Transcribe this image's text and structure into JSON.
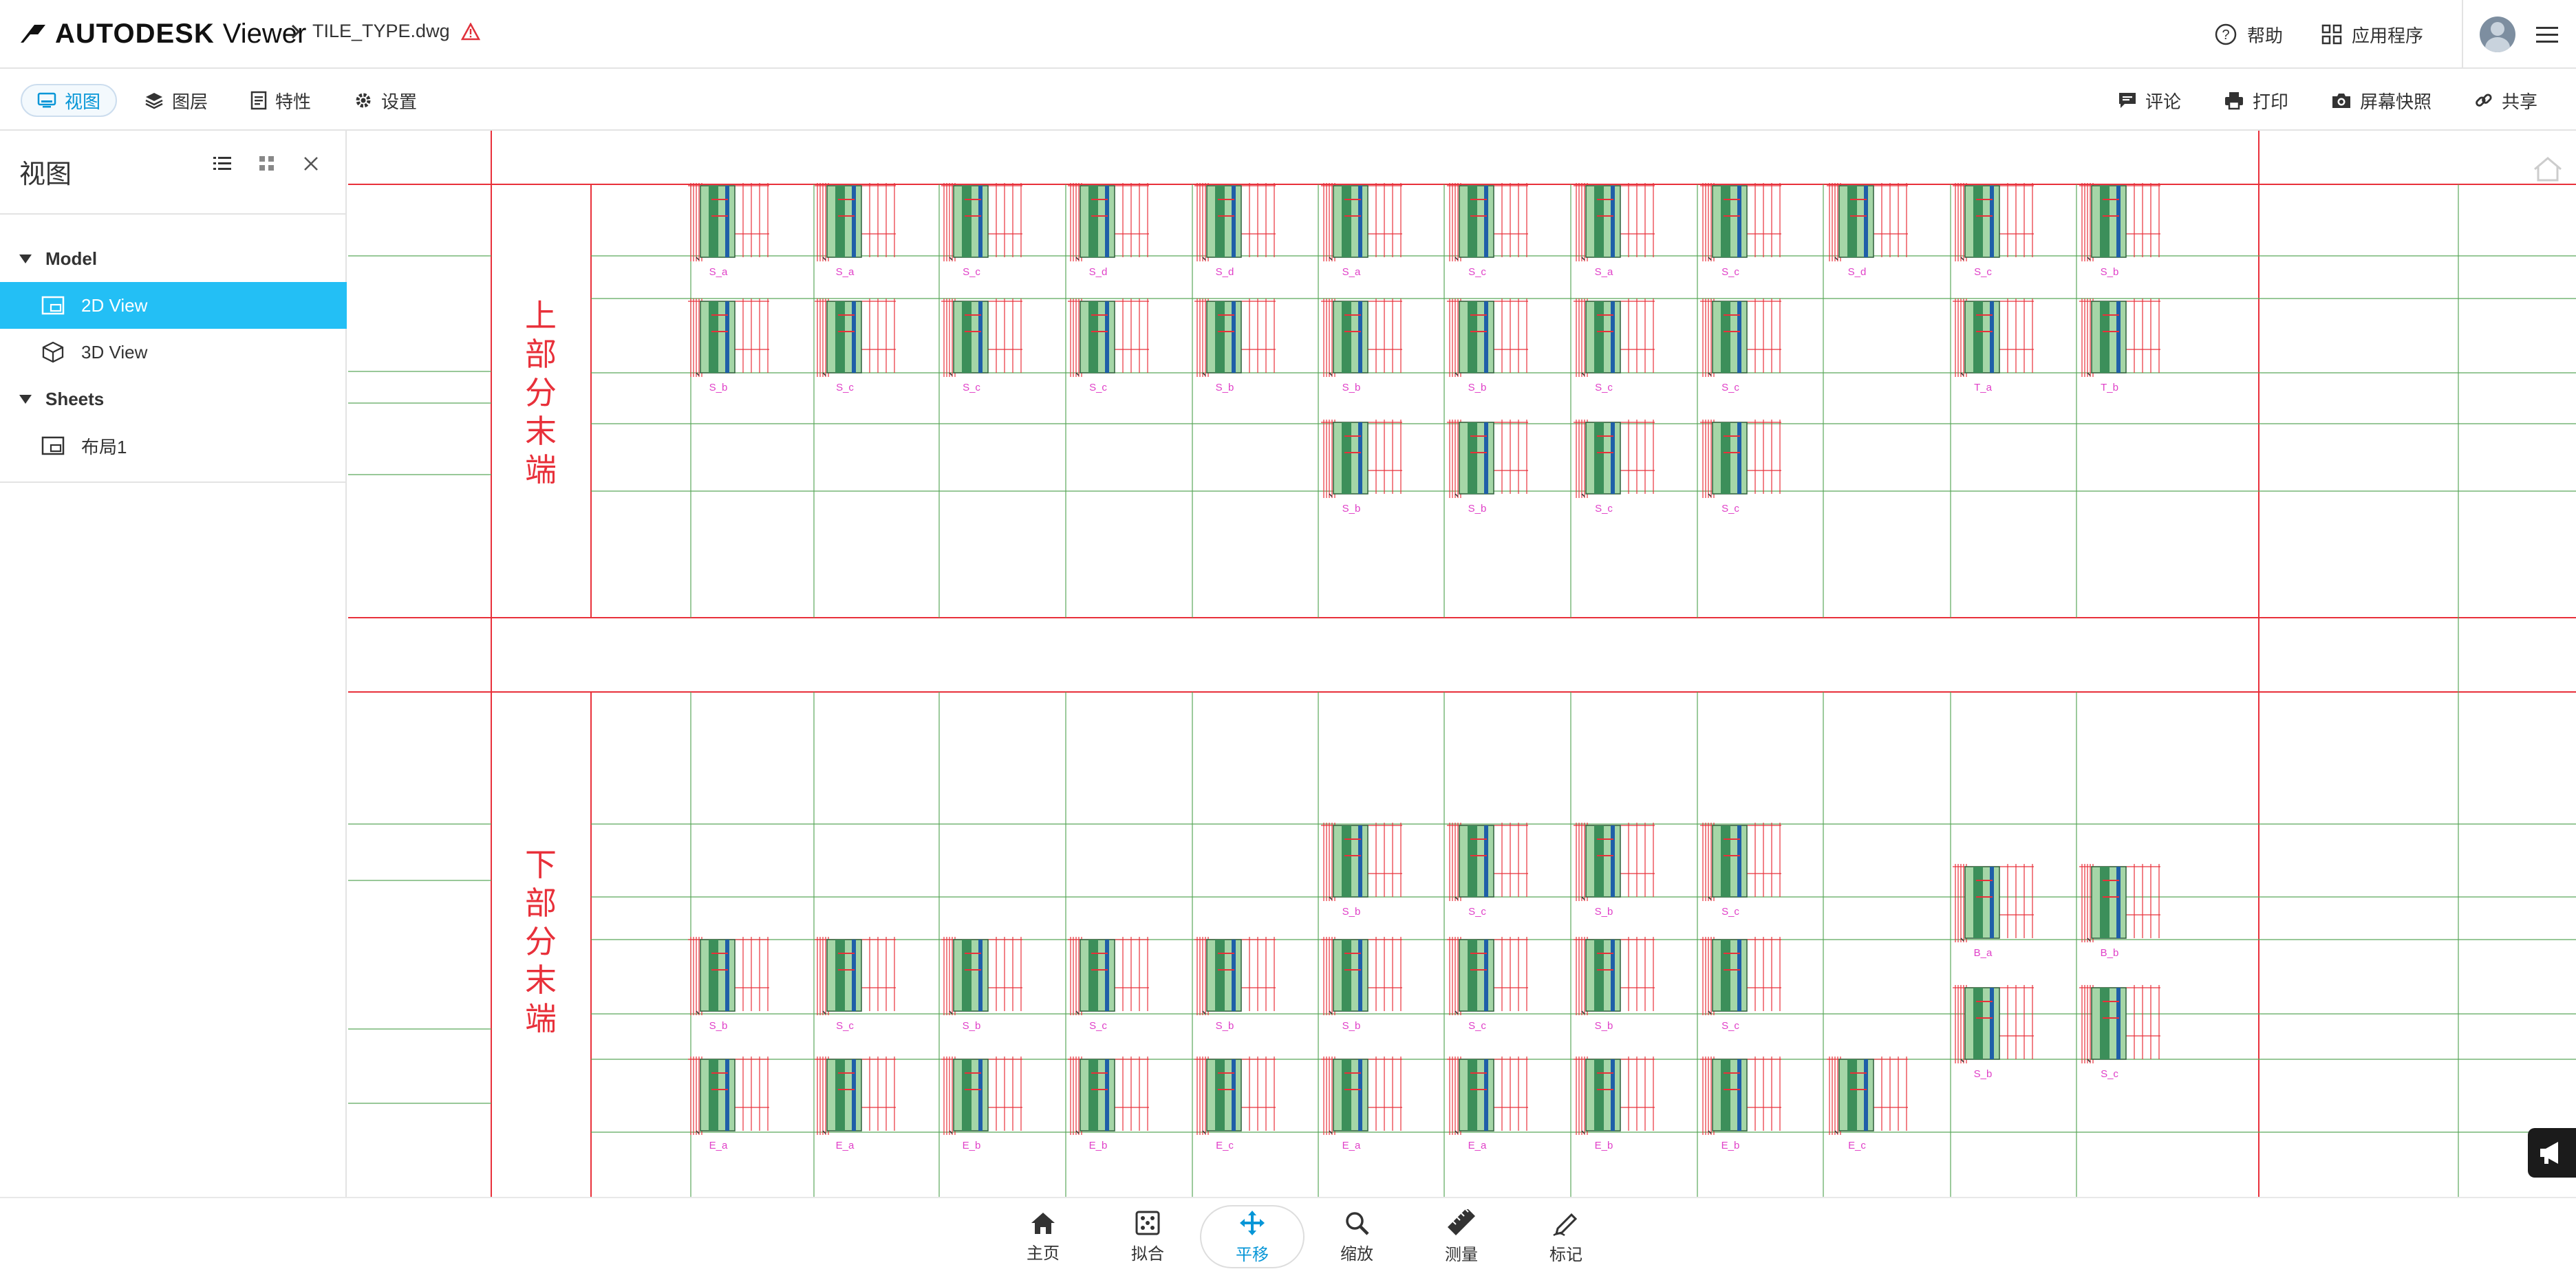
{
  "header": {
    "brand": "AUTODESK",
    "product": "Viewer",
    "file_name": "TILE_TYPE.dwg",
    "help_label": "帮助",
    "apps_label": "应用程序"
  },
  "toolbar": {
    "tabs": [
      {
        "label": "视图",
        "icon": "view-icon",
        "active": true
      },
      {
        "label": "图层",
        "icon": "layers-icon"
      },
      {
        "label": "特性",
        "icon": "properties-icon"
      },
      {
        "label": "设置",
        "icon": "gear-icon"
      }
    ],
    "right": [
      {
        "label": "评论",
        "icon": "comment-icon"
      },
      {
        "label": "打印",
        "icon": "print-icon"
      },
      {
        "label": "屏幕快照",
        "icon": "camera-icon"
      },
      {
        "label": "共享",
        "icon": "link-icon"
      }
    ]
  },
  "sidebar": {
    "title": "视图",
    "tree": [
      {
        "label": "Model",
        "type": "group"
      },
      {
        "label": "2D View",
        "type": "leaf",
        "selected": true,
        "icon": "sheet-2d-icon"
      },
      {
        "label": "3D View",
        "type": "leaf",
        "icon": "cube-icon"
      },
      {
        "label": "Sheets",
        "type": "group"
      },
      {
        "label": "布局1",
        "type": "leaf",
        "icon": "sheet-2d-icon"
      }
    ]
  },
  "drawing": {
    "section_upper": "上部分末端",
    "section_lower": "下部分末端",
    "upper_rows": [
      [
        "S_a",
        "S_a",
        "S_c",
        "S_d",
        "S_d",
        "S_a",
        "S_c",
        "S_a",
        "S_c",
        "S_d",
        "S_c",
        "S_b"
      ],
      [
        "S_b",
        "S_c",
        "S_c",
        "S_c",
        "S_b",
        "S_b",
        "S_b",
        "S_c",
        "S_c",
        "",
        "T_a",
        "T_b"
      ],
      [
        "",
        "",
        "",
        "",
        "",
        "S_b",
        "S_b",
        "S_c",
        "S_c",
        "",
        "",
        ""
      ]
    ],
    "lower_rows": [
      [
        "",
        "",
        "",
        "",
        "",
        "S_b",
        "S_c",
        "S_b",
        "S_c",
        "",
        "B_a",
        "B_b"
      ],
      [
        "S_b",
        "S_c",
        "S_b",
        "S_c",
        "S_b",
        "S_b",
        "S_c",
        "S_b",
        "S_c",
        "",
        "S_b",
        "S_c"
      ],
      [
        "E_a",
        "E_a",
        "E_b",
        "E_b",
        "E_c",
        "E_a",
        "E_a",
        "E_b",
        "E_b",
        "E_c",
        "",
        ""
      ]
    ]
  },
  "bottom_toolbar": [
    {
      "label": "主页",
      "icon": "home-icon"
    },
    {
      "label": "拟合",
      "icon": "fit-icon"
    },
    {
      "label": "平移",
      "icon": "pan-icon",
      "active": true
    },
    {
      "label": "缩放",
      "icon": "zoom-icon"
    },
    {
      "label": "测量",
      "icon": "ruler-icon"
    },
    {
      "label": "标记",
      "icon": "markup-icon"
    }
  ],
  "colors": {
    "accent": "#0696d7",
    "selected_row": "#23bff5",
    "cad_red": "#e8303a",
    "cad_green": "#5aa85a",
    "cad_magenta": "#e040c8",
    "tile_fill": "#a5d6a7"
  }
}
